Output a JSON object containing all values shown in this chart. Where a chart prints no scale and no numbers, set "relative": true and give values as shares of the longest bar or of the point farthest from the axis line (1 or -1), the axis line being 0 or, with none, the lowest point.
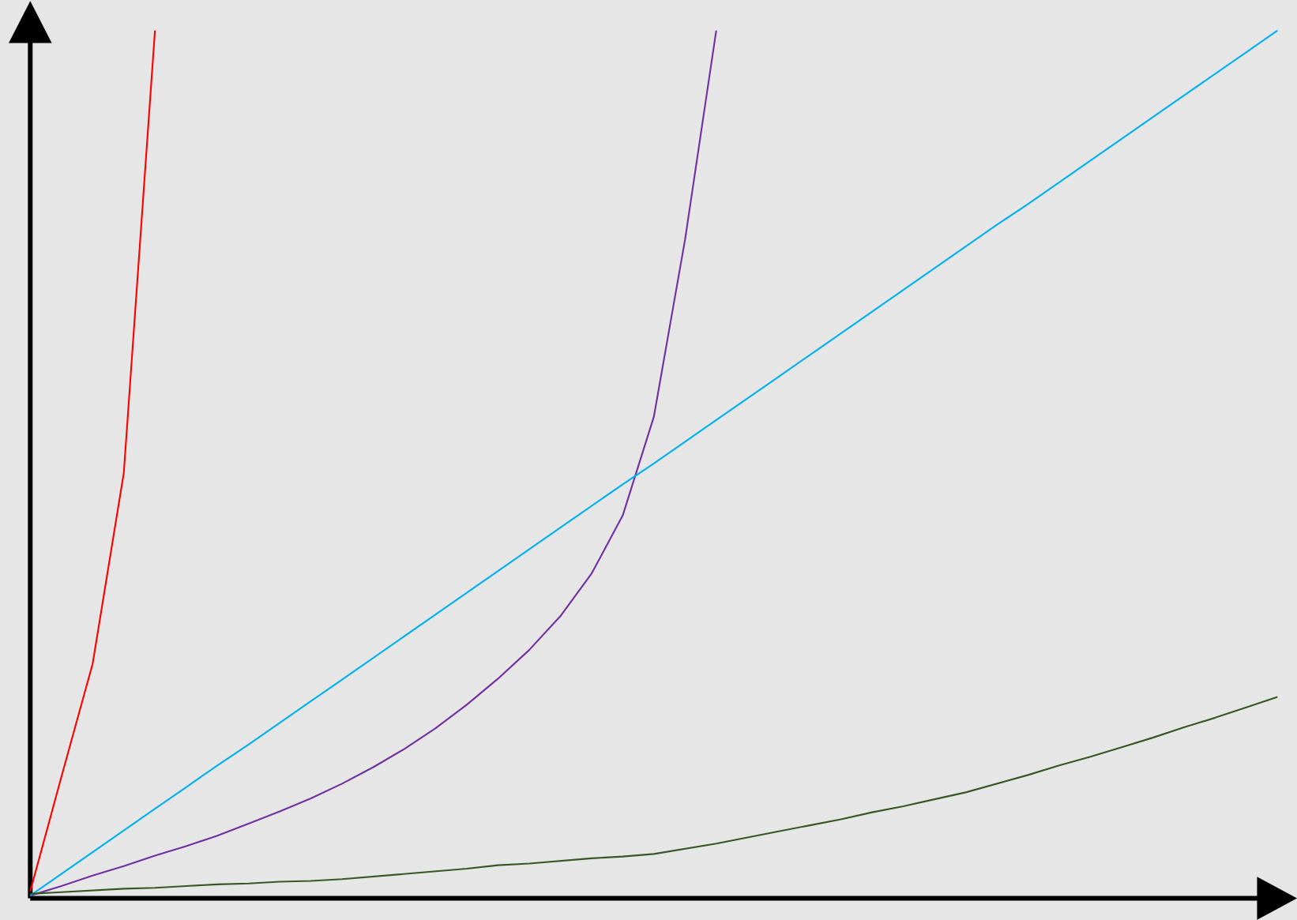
{
  "chart_data": {
    "type": "line",
    "relative": true,
    "categories": [
      null,
      null,
      null,
      null,
      null,
      null,
      null,
      null,
      null,
      null,
      null,
      null,
      null,
      null,
      null,
      null,
      null,
      null,
      null,
      null,
      null,
      null,
      null,
      null,
      null,
      null,
      null,
      null,
      null,
      null,
      null,
      null,
      null,
      null,
      null,
      null,
      null,
      null,
      null,
      null,
      null
    ],
    "series": [
      {
        "color": "#ff0000",
        "values": [
          0.008,
          0.14,
          0.27,
          0.49,
          1.0,
          null,
          null,
          null,
          null,
          null,
          null,
          null,
          null,
          null,
          null,
          null,
          null,
          null,
          null,
          null,
          null,
          null,
          null,
          null,
          null,
          null,
          null,
          null,
          null,
          null,
          null,
          null,
          null,
          null,
          null,
          null,
          null,
          null,
          null,
          null,
          null
        ]
      },
      {
        "color": "#7030a0",
        "values": [
          0.003,
          0.014,
          0.026,
          0.037,
          0.049,
          0.06,
          0.072,
          0.086,
          0.1,
          0.115,
          0.132,
          0.151,
          0.172,
          0.196,
          0.223,
          0.253,
          0.286,
          0.325,
          0.374,
          0.441,
          0.555,
          0.759,
          1.0,
          null,
          null,
          null,
          null,
          null,
          null,
          null,
          null,
          null,
          null,
          null,
          null,
          null,
          null,
          null,
          null,
          null,
          null
        ]
      },
      {
        "color": "#00b0f0",
        "values": [
          0.003,
          0.028,
          0.053,
          0.078,
          0.103,
          0.128,
          0.153,
          0.177,
          0.202,
          0.227,
          0.252,
          0.277,
          0.302,
          0.327,
          0.352,
          0.377,
          0.402,
          0.427,
          0.452,
          0.477,
          0.501,
          0.526,
          0.551,
          0.576,
          0.601,
          0.626,
          0.651,
          0.676,
          0.701,
          0.726,
          0.751,
          0.776,
          0.8,
          0.825,
          0.85,
          0.875,
          0.9,
          0.925,
          0.95,
          0.975,
          1.0
        ]
      },
      {
        "color": "#375623",
        "values": [
          0.005,
          0.007,
          0.009,
          0.011,
          0.012,
          0.014,
          0.016,
          0.017,
          0.019,
          0.02,
          0.022,
          0.025,
          0.028,
          0.031,
          0.034,
          0.038,
          0.04,
          0.043,
          0.046,
          0.048,
          0.051,
          0.057,
          0.063,
          0.07,
          0.077,
          0.084,
          0.091,
          0.099,
          0.106,
          0.114,
          0.122,
          0.132,
          0.142,
          0.153,
          0.163,
          0.174,
          0.185,
          0.197,
          0.208,
          0.22,
          0.232
        ]
      }
    ]
  }
}
